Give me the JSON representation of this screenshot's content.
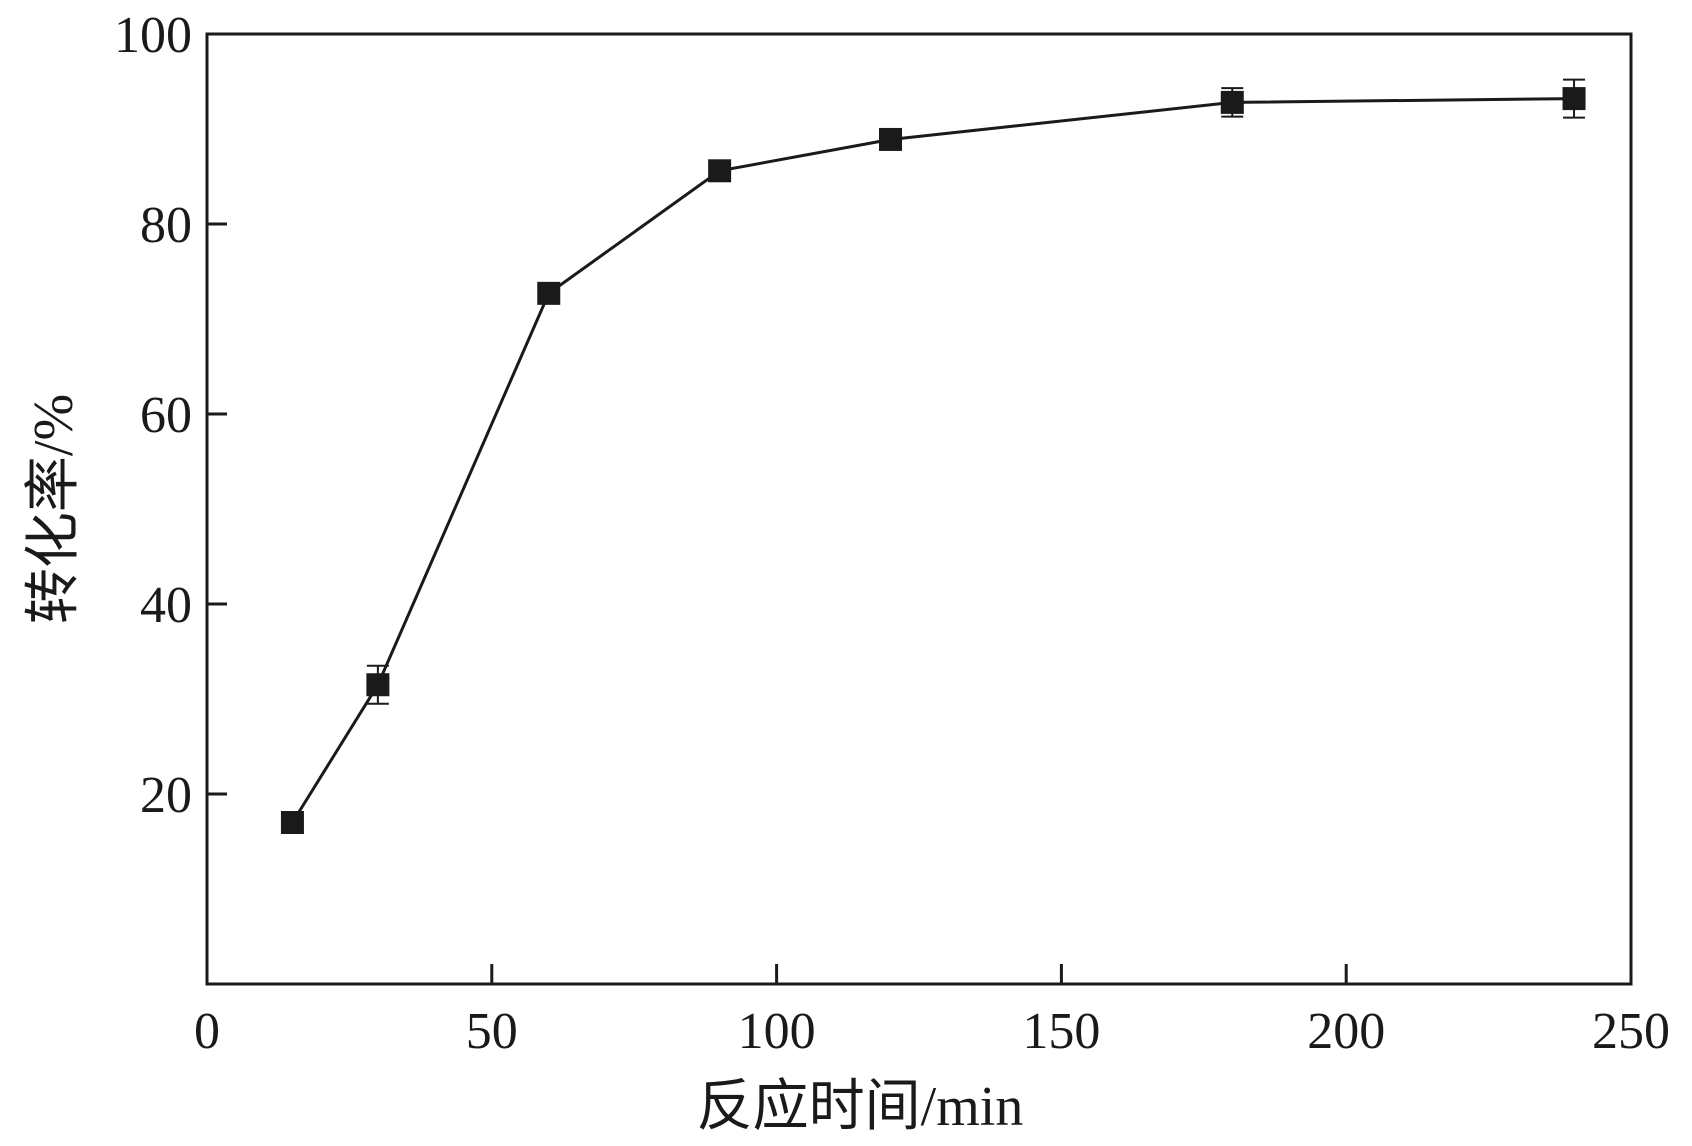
{
  "chart_data": {
    "type": "line",
    "title": "",
    "xlabel": "反应时间/min",
    "ylabel": "转化率/%",
    "xlim": [
      0,
      250
    ],
    "ylim": [
      0,
      100
    ],
    "xticks": [
      0,
      50,
      100,
      150,
      200,
      250
    ],
    "xtick_labels": [
      "0",
      "50",
      "100",
      "150",
      "200",
      "250"
    ],
    "yticks": [
      20,
      40,
      60,
      80,
      100
    ],
    "ytick_labels": [
      "20",
      "40",
      "60",
      "80",
      "100"
    ],
    "grid": false,
    "marker": "square",
    "series": [
      {
        "x": [
          15,
          30,
          60,
          90,
          120,
          180,
          240
        ],
        "y": [
          17.0,
          31.5,
          72.7,
          85.6,
          88.9,
          92.8,
          93.2
        ],
        "error": [
          1.0,
          2.0,
          0.5,
          0.5,
          1.0,
          1.5,
          2.0
        ]
      }
    ]
  }
}
